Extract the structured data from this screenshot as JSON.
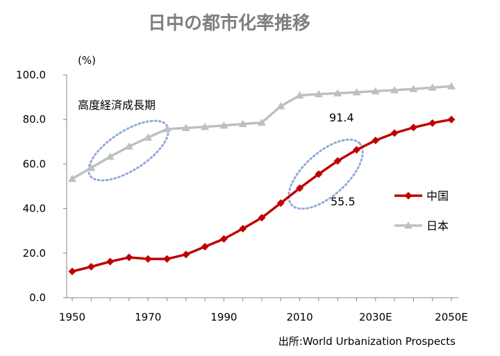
{
  "chart_data": {
    "type": "line",
    "title": "日中の都市化率推移",
    "ylabel": "(%)",
    "xlabel": "",
    "ylim": [
      0,
      100
    ],
    "y_ticks": [
      "0.0",
      "20.0",
      "40.0",
      "60.0",
      "80.0",
      "100.0"
    ],
    "x_tick_labels": [
      "1950",
      "1970",
      "1990",
      "2010",
      "2030E",
      "2050E"
    ],
    "x": [
      1950,
      1955,
      1960,
      1965,
      1970,
      1975,
      1980,
      1985,
      1990,
      1995,
      2000,
      2005,
      2010,
      2015,
      2020,
      2025,
      2030,
      2035,
      2040,
      2045,
      2050
    ],
    "series": [
      {
        "name": "中国",
        "color": "#c00000",
        "marker": "diamond",
        "values": [
          11.8,
          13.9,
          16.2,
          18.1,
          17.4,
          17.4,
          19.4,
          22.9,
          26.4,
          31.0,
          35.9,
          42.5,
          49.2,
          55.5,
          61.4,
          66.4,
          70.6,
          73.9,
          76.4,
          78.4,
          80.0
        ]
      },
      {
        "name": "日本",
        "color": "#bfbfbf",
        "marker": "triangle",
        "values": [
          53.4,
          58.3,
          63.3,
          67.9,
          71.9,
          75.7,
          76.2,
          76.7,
          77.3,
          78.0,
          78.6,
          86.0,
          90.8,
          91.4,
          91.8,
          92.2,
          92.7,
          93.2,
          93.7,
          94.3,
          94.9
        ]
      }
    ],
    "annotations": {
      "period_label": "高度経済成長期",
      "japan_value": "91.4",
      "china_value": "55.5"
    },
    "legend_position": "right",
    "grid": false
  },
  "source_text": "出所:World Urbanization Prospects"
}
